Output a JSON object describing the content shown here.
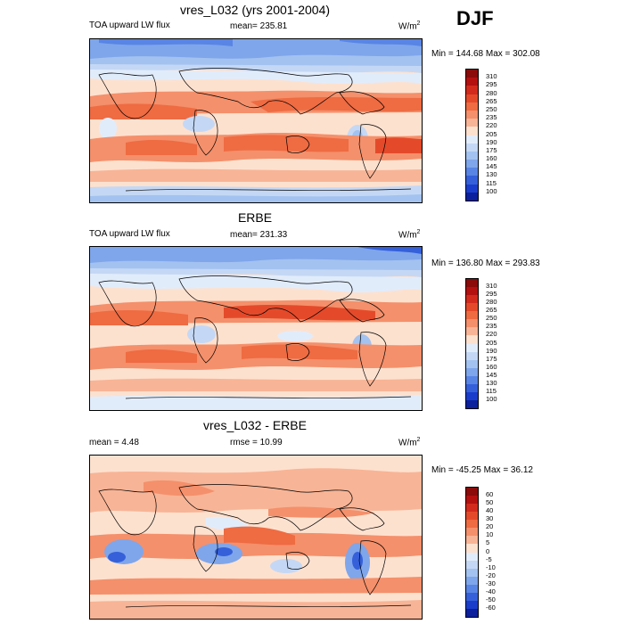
{
  "season": "DJF",
  "panels": [
    {
      "title": "vres_L032 (yrs 2001-2004)",
      "left_label": "TOA upward LW flux",
      "center_label": "mean= 235.81",
      "units": "W/m",
      "units_sup": "2",
      "minmax": "Min = 144.68 Max = 302.08",
      "levels": [
        "310",
        "295",
        "280",
        "265",
        "250",
        "235",
        "220",
        "205",
        "190",
        "175",
        "160",
        "145",
        "130",
        "115",
        "100"
      ],
      "colors": [
        "#8b0a0a",
        "#b31010",
        "#d22a1c",
        "#e44a2a",
        "#ef6b42",
        "#f4906b",
        "#f8b496",
        "#fde1cf",
        "#e1ecfb",
        "#c4d8f5",
        "#a3c2f0",
        "#7fa6eb",
        "#5985e4",
        "#3560da",
        "#1a3dcc",
        "#0c1f9c"
      ]
    },
    {
      "title": "ERBE",
      "left_label": "TOA upward LW flux",
      "center_label": "mean= 231.33",
      "units": "W/m",
      "units_sup": "2",
      "minmax": "Min = 136.80 Max = 293.83",
      "levels": [
        "310",
        "295",
        "280",
        "265",
        "250",
        "235",
        "220",
        "205",
        "190",
        "175",
        "160",
        "145",
        "130",
        "115",
        "100"
      ],
      "colors": [
        "#8b0a0a",
        "#b31010",
        "#d22a1c",
        "#e44a2a",
        "#ef6b42",
        "#f4906b",
        "#f8b496",
        "#fde1cf",
        "#e1ecfb",
        "#c4d8f5",
        "#a3c2f0",
        "#7fa6eb",
        "#5985e4",
        "#3560da",
        "#1a3dcc",
        "#0c1f9c"
      ]
    },
    {
      "title": "vres_L032 - ERBE",
      "left_label": "mean =   4.48",
      "center_label": "rmse =  10.99",
      "units": "W/m",
      "units_sup": "2",
      "minmax": "Min = -45.25 Max =  36.12",
      "levels": [
        "60",
        "50",
        "40",
        "30",
        "20",
        "10",
        "5",
        "0",
        "-5",
        "-10",
        "-20",
        "-30",
        "-40",
        "-50",
        "-60"
      ],
      "colors": [
        "#8b0a0a",
        "#b31010",
        "#d22a1c",
        "#e44a2a",
        "#ef6b42",
        "#f4906b",
        "#f8b496",
        "#fde1cf",
        "#e1ecfb",
        "#c4d8f5",
        "#a3c2f0",
        "#7fa6eb",
        "#5985e4",
        "#3560da",
        "#1a3dcc",
        "#0c1f9c"
      ]
    }
  ]
}
